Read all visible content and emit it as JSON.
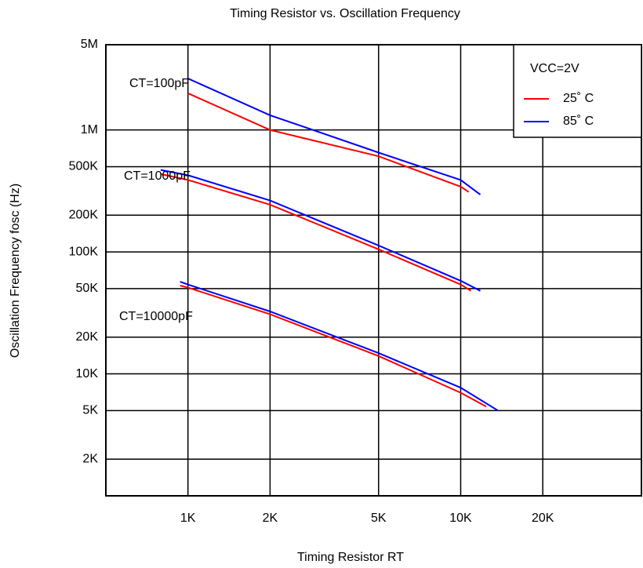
{
  "chart_data": {
    "type": "line",
    "title": "Timing Resistor  vs. Oscillation Frequency",
    "x_label": "Timing Resistor RT",
    "y_label": "Oscillation Frequency  fosc (Hz)",
    "x_log": true,
    "y_log": true,
    "grid": true,
    "xlim": [
      500,
      46000
    ],
    "ylim": [
      1000,
      5000000
    ],
    "xticks": [
      {
        "value": 1000,
        "label": "1K"
      },
      {
        "value": 2000,
        "label": "2K"
      },
      {
        "value": 5000,
        "label": "5K"
      },
      {
        "value": 10000,
        "label": "10K"
      },
      {
        "value": 20000,
        "label": "20K"
      }
    ],
    "yticks": [
      {
        "value": 2000,
        "label": "2K"
      },
      {
        "value": 5000,
        "label": "5K"
      },
      {
        "value": 10000,
        "label": "10K"
      },
      {
        "value": 20000,
        "label": "20K"
      },
      {
        "value": 50000,
        "label": "50K"
      },
      {
        "value": 100000,
        "label": "100K"
      },
      {
        "value": 200000,
        "label": "200K"
      },
      {
        "value": 500000,
        "label": "500K"
      },
      {
        "value": 1000000,
        "label": "1M"
      },
      {
        "value": 5000000,
        "label": "5M"
      }
    ],
    "legend_title": "VCC=2V",
    "legend_position": "upper right",
    "annotations": [
      "CT=100pF",
      "CT=1000pF",
      "CT=10000pF"
    ],
    "series": [
      {
        "name": "25˚ C",
        "color": "#ff0000",
        "x": [
          1000,
          2000,
          5000,
          10000,
          10700
        ],
        "values": [
          2000000,
          1000000,
          608000,
          343000,
          310000
        ]
      },
      {
        "name": "85˚ C",
        "color": "#0000ff",
        "x": [
          1000,
          2000,
          5000,
          10000,
          11800
        ],
        "values": [
          2640000,
          1320000,
          652000,
          389000,
          295000
        ]
      },
      {
        "name": "25˚ C",
        "color": "#ff0000",
        "x": [
          794,
          1000,
          2000,
          5000,
          10000,
          10900
        ],
        "values": [
          435000,
          389000,
          244000,
          105000,
          54000,
          48000
        ]
      },
      {
        "name": "85˚ C",
        "color": "#0000ff",
        "x": [
          794,
          1000,
          2000,
          5000,
          10000,
          11800
        ],
        "values": [
          470000,
          425000,
          264000,
          113000,
          58000,
          48000
        ]
      },
      {
        "name": "25˚ C",
        "color": "#ff0000",
        "x": [
          936,
          1000,
          2000,
          5000,
          10000,
          12400
        ],
        "values": [
          53000,
          51000,
          30800,
          14000,
          7000,
          5400
        ]
      },
      {
        "name": "85˚ C",
        "color": "#0000ff",
        "x": [
          936,
          1000,
          2000,
          5000,
          10000,
          13700
        ],
        "values": [
          57000,
          54000,
          32500,
          14800,
          7700,
          5000
        ]
      }
    ]
  }
}
